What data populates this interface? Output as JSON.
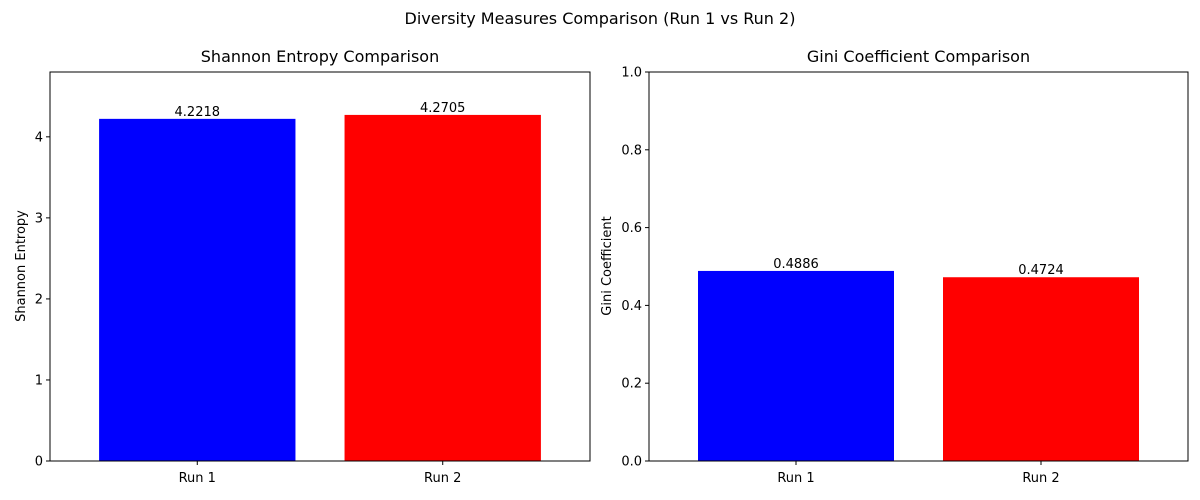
{
  "figure": {
    "suptitle": "Diversity Measures Comparison (Run 1 vs Run 2)"
  },
  "chart_data": [
    {
      "type": "bar",
      "title": "Shannon Entropy Comparison",
      "xlabel": "",
      "ylabel": "Shannon Entropy",
      "categories": [
        "Run 1",
        "Run 2"
      ],
      "values": [
        4.2218,
        4.2705
      ],
      "value_labels": [
        "4.2218",
        "4.2705"
      ],
      "colors": [
        "#0000ff",
        "#ff0000"
      ],
      "ylim": [
        0,
        4.8
      ],
      "yticks": [
        0,
        1,
        2,
        3,
        4
      ],
      "ytick_labels": [
        "0",
        "1",
        "2",
        "3",
        "4"
      ],
      "grid": false
    },
    {
      "type": "bar",
      "title": "Gini Coefficient Comparison",
      "xlabel": "",
      "ylabel": "Gini Coefficient",
      "categories": [
        "Run 1",
        "Run 2"
      ],
      "values": [
        0.4886,
        0.4724
      ],
      "value_labels": [
        "0.4886",
        "0.4724"
      ],
      "colors": [
        "#0000ff",
        "#ff0000"
      ],
      "ylim": [
        0,
        1.0
      ],
      "yticks": [
        0,
        0.2,
        0.4,
        0.6,
        0.8,
        1.0
      ],
      "ytick_labels": [
        "0.0",
        "0.2",
        "0.4",
        "0.6",
        "0.8",
        "1.0"
      ],
      "grid": false
    }
  ]
}
